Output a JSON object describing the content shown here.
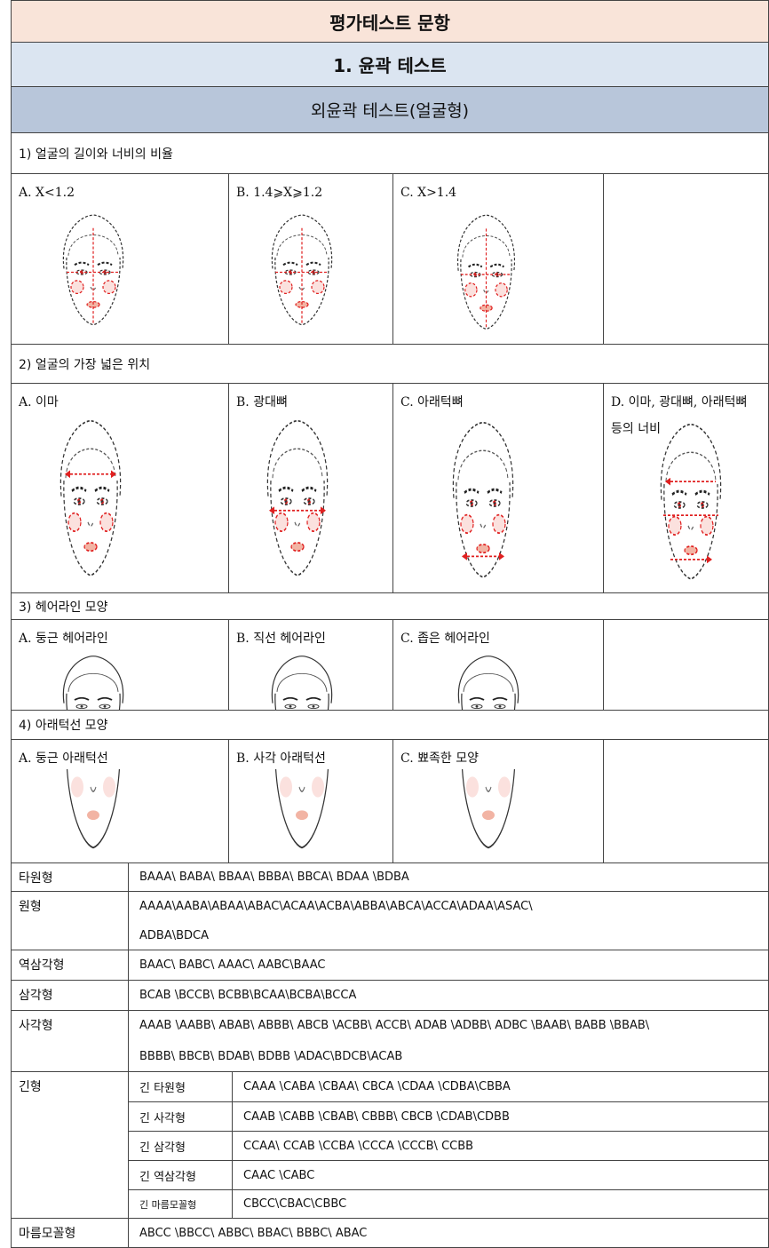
{
  "title": "평가테스트 문항",
  "section": "1. 윤곽 테스트",
  "subsection": "외윤곽 테스트(얼굴형)",
  "questions": [
    {
      "label": "1) 얼굴의 길이와 너비의 비율",
      "options": [
        "A. X<1.2",
        "B. 1.4⩾X⩾1.2",
        "C. X>1.4"
      ]
    },
    {
      "label": "2) 얼굴의 가장 넓은 위치",
      "options": [
        "A. 이마",
        "B. 광대뼈",
        "C. 아래턱뼈",
        "D. 이마, 광대뼈, 아래턱뼈 등의 너비"
      ]
    },
    {
      "label": "3) 헤어라인 모양",
      "options": [
        "A. 둥근 헤어라인",
        "B. 직선 헤어라인",
        "C. 좁은 헤어라인"
      ]
    },
    {
      "label": "4) 아래턱선 모양",
      "options": [
        "A. 둥근 아래턱선",
        "B. 사각 아래턱선",
        "C. 뾰족한 모양"
      ]
    }
  ],
  "classification": [
    {
      "name": "타원형",
      "codes": [
        "BAAA\\ BABA\\ BBAA\\ BBBA\\ BBCA\\ BDAA \\BDBA"
      ]
    },
    {
      "name": "원형",
      "codes": [
        "AAAA\\AABA\\ABAA\\ABAC\\ACAA\\ACBA\\ABBA\\ABCA\\ACCA\\ADAA\\ASAC\\",
        "ADBA\\BDCA"
      ]
    },
    {
      "name": "역삼각형",
      "codes": [
        "BAAC\\ BABC\\ AAAC\\ AABC\\BAAC"
      ]
    },
    {
      "name": "삼각형",
      "codes": [
        "BCAB \\BCCB\\ BCBB\\BCAA\\BCBA\\BCCA"
      ]
    },
    {
      "name": "사각형",
      "codes": [
        "AAAB \\AABB\\ ABAB\\ ABBB\\ ABCB \\ACBB\\ ACCB\\ ADAB \\ADBB\\ ADBC \\BAAB\\ BABB \\BBAB\\",
        "BBBB\\ BBCB\\ BDAB\\ BDBB \\ADAC\\BDCB\\ACAB"
      ]
    },
    {
      "name": "긴형",
      "sub": [
        {
          "name": "긴 타원형",
          "codes": [
            "CAAA \\CABA \\CBAA\\ CBCA \\CDAA \\CDBA\\CBBA"
          ]
        },
        {
          "name": "긴 사각형",
          "codes": [
            "CAAB \\CABB \\CBAB\\ CBBB\\ CBCB \\CDAB\\CDBB"
          ]
        },
        {
          "name": "긴 삼각형",
          "codes": [
            "CCAA\\ CCAB \\CCBA \\CCCA \\CCCB\\ CCBB"
          ]
        },
        {
          "name": "긴 역삼각형",
          "codes": [
            "CAAC \\CABC"
          ]
        },
        {
          "name": "긴 마름모꼴형",
          "codes": [
            "CBCC\\CBAC\\CBBC"
          ]
        }
      ]
    },
    {
      "name": "마름모꼴형",
      "codes": [
        "ABCC \\BBCC\\ ABBC\\ BBAC\\ BBBC\\ ABAC"
      ]
    }
  ]
}
